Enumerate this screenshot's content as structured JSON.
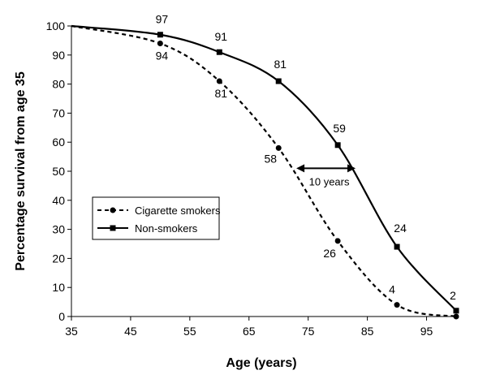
{
  "chart_data": {
    "type": "line",
    "xlabel": "Age (years)",
    "ylabel": "Percentage survival from age 35",
    "xlim": [
      35,
      100
    ],
    "ylim": [
      0,
      100
    ],
    "xticks": [
      35,
      45,
      55,
      65,
      75,
      85,
      95
    ],
    "yticks": [
      0,
      10,
      20,
      30,
      40,
      50,
      60,
      70,
      80,
      90,
      100
    ],
    "grid": false,
    "legend_position": "middle-left",
    "series": [
      {
        "name": "Cigarette smokers",
        "style": "dashed",
        "marker": "circle",
        "color": "#000000",
        "x": [
          35,
          50,
          60,
          70,
          80,
          90,
          100
        ],
        "y": [
          100,
          94,
          81,
          58,
          26,
          4,
          0
        ],
        "labels": [
          "",
          "94",
          "81",
          "58",
          "26",
          "4",
          ""
        ]
      },
      {
        "name": "Non-smokers",
        "style": "solid",
        "marker": "square",
        "color": "#000000",
        "x": [
          35,
          50,
          60,
          70,
          80,
          90,
          100
        ],
        "y": [
          100,
          97,
          91,
          81,
          59,
          24,
          2
        ],
        "labels": [
          "",
          "97",
          "91",
          "81",
          "59",
          "24",
          "2"
        ]
      }
    ],
    "annotations": [
      {
        "text": "10 years",
        "type": "double-arrow",
        "x_from": 73,
        "x_to": 83,
        "y": 51
      }
    ]
  }
}
